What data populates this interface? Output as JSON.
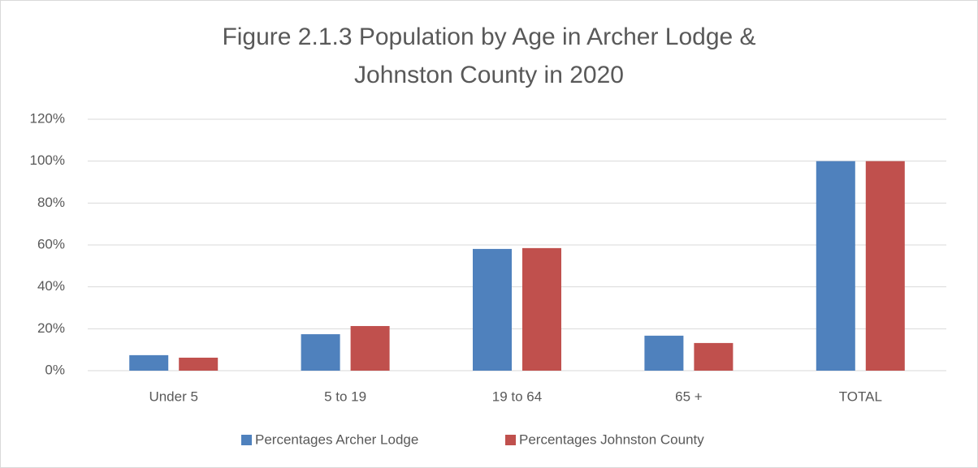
{
  "chart_data": {
    "type": "bar",
    "title": "Figure 2.1.3 Population by Age in Archer Lodge & Johnston County in 2020",
    "categories": [
      "Under 5",
      "5 to 19",
      "19 to 64",
      "65 +",
      "TOTAL"
    ],
    "series": [
      {
        "name": "Percentages Archer Lodge",
        "color": "#4f81bd",
        "values": [
          7.4,
          17.4,
          58.1,
          16.7,
          100
        ]
      },
      {
        "name": "Percentages Johnston County",
        "color": "#c0504d",
        "values": [
          6.2,
          21.3,
          58.5,
          13.2,
          100
        ]
      }
    ],
    "ylim": [
      0,
      120
    ],
    "yticks": [
      {
        "value": 0,
        "label": "0%"
      },
      {
        "value": 20,
        "label": "20%"
      },
      {
        "value": 40,
        "label": "40%"
      },
      {
        "value": 60,
        "label": "60%"
      },
      {
        "value": 80,
        "label": "80%"
      },
      {
        "value": 100,
        "label": "100%"
      },
      {
        "value": 120,
        "label": "120%"
      }
    ],
    "grid": true,
    "legend": "bottom"
  }
}
